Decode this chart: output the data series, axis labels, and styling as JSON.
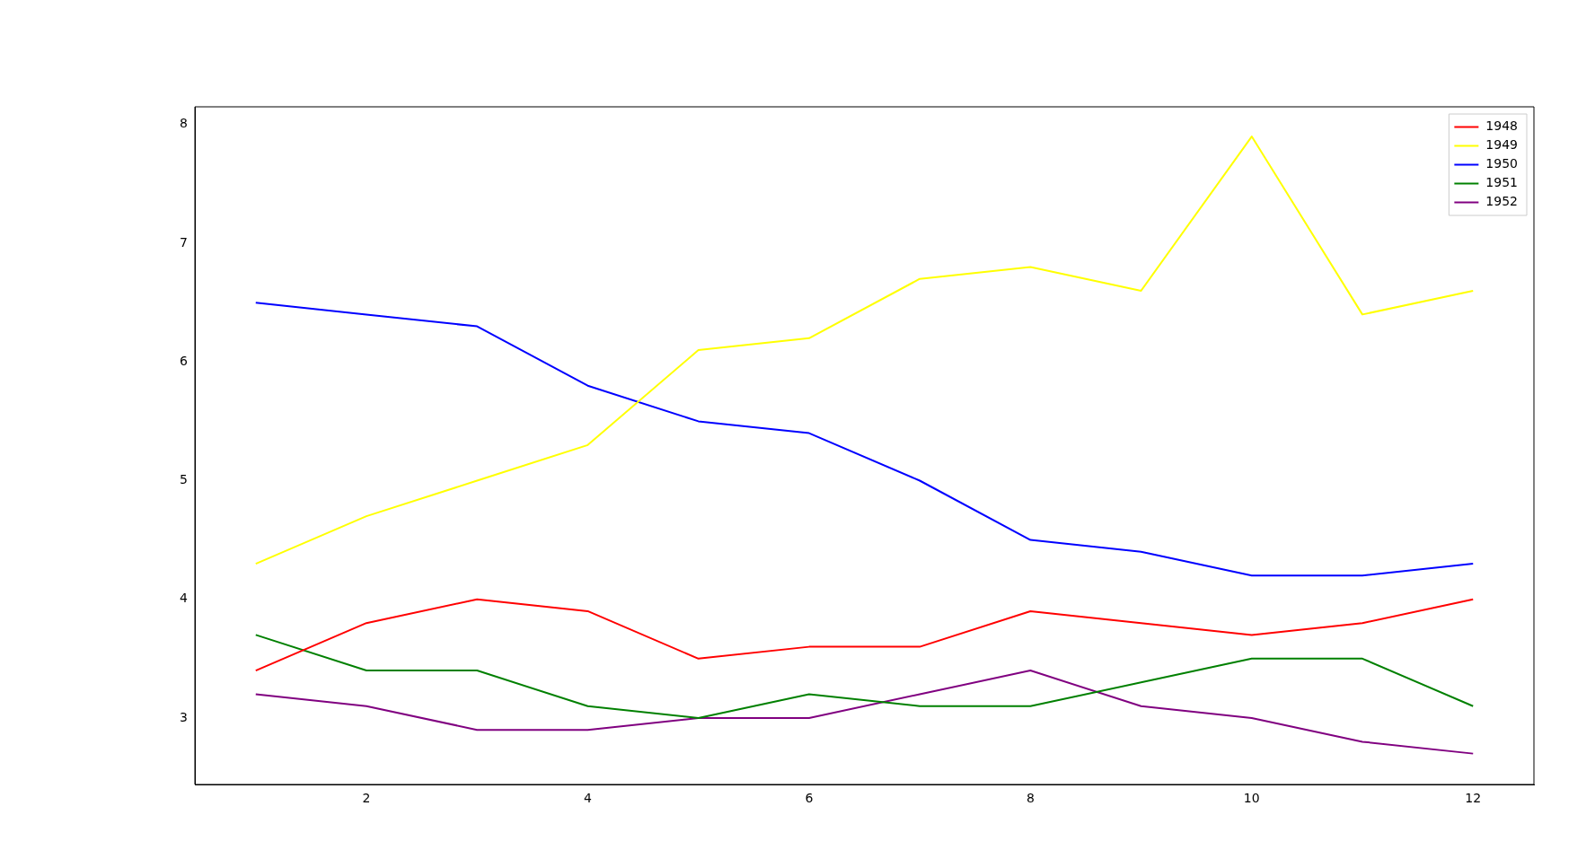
{
  "chart_data": {
    "type": "line",
    "x": [
      1,
      2,
      3,
      4,
      5,
      6,
      7,
      8,
      9,
      10,
      11,
      12
    ],
    "series": [
      {
        "name": "1948",
        "color": "#ff0000",
        "values": [
          3.4,
          3.8,
          4.0,
          3.9,
          3.5,
          3.6,
          3.6,
          3.9,
          3.8,
          3.7,
          3.8,
          4.0
        ]
      },
      {
        "name": "1949",
        "color": "#ffff00",
        "values": [
          4.3,
          4.7,
          5.0,
          5.3,
          6.1,
          6.2,
          6.7,
          6.8,
          6.6,
          7.9,
          6.4,
          6.6
        ]
      },
      {
        "name": "1950",
        "color": "#0000ff",
        "values": [
          6.5,
          6.4,
          6.3,
          5.8,
          5.5,
          5.4,
          5.0,
          4.5,
          4.4,
          4.2,
          4.2,
          4.3
        ]
      },
      {
        "name": "1951",
        "color": "#008000",
        "values": [
          3.7,
          3.4,
          3.4,
          3.1,
          3.0,
          3.2,
          3.1,
          3.1,
          3.3,
          3.5,
          3.5,
          3.1
        ]
      },
      {
        "name": "1952",
        "color": "#800080",
        "values": [
          3.2,
          3.1,
          2.9,
          2.9,
          3.0,
          3.0,
          3.2,
          3.4,
          3.1,
          3.0,
          2.8,
          2.7
        ]
      }
    ],
    "xlim": [
      0.45,
      12.55
    ],
    "xticks": [
      2,
      4,
      6,
      8,
      10,
      12
    ],
    "ylim": [
      2.44,
      8.15
    ],
    "yticks": [
      3,
      4,
      5,
      6,
      7,
      8
    ],
    "grid": false,
    "legend": "top right",
    "marker": "none",
    "line_style": "solid"
  }
}
